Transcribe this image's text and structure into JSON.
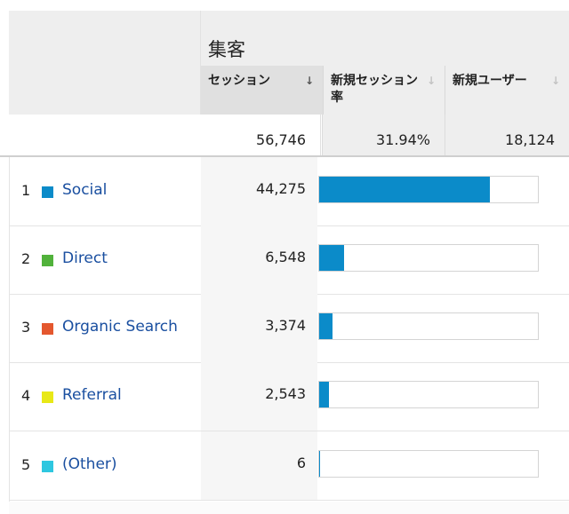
{
  "group_title": "集客",
  "columns": [
    {
      "label": "セッション",
      "sort_icon": "arrow-down-icon",
      "active": true
    },
    {
      "label": "新規セッション率",
      "sort_icon": "arrow-down-icon",
      "active": false
    },
    {
      "label": "新規ユーザー",
      "sort_icon": "arrow-down-icon",
      "active": false
    }
  ],
  "sort_glyph": "↓",
  "totals": {
    "sessions": "56,746",
    "new_session_rate": "31.94%",
    "new_users": "18,124"
  },
  "rows": [
    {
      "index": "1",
      "channel": "Social",
      "color": "#0b8bc9",
      "sessions": "44,275",
      "share": 0.7802
    },
    {
      "index": "2",
      "channel": "Direct",
      "color": "#51b23b",
      "sessions": "6,548",
      "share": 0.1154
    },
    {
      "index": "3",
      "channel": "Organic Search",
      "color": "#e4572e",
      "sessions": "3,374",
      "share": 0.0595
    },
    {
      "index": "4",
      "channel": "Referral",
      "color": "#e8e817",
      "sessions": "2,543",
      "share": 0.0448
    },
    {
      "index": "5",
      "channel": "(Other)",
      "color": "#2ec7e0",
      "sessions": "6",
      "share": 0.0001
    }
  ],
  "bar_color": "#0b8bc9"
}
